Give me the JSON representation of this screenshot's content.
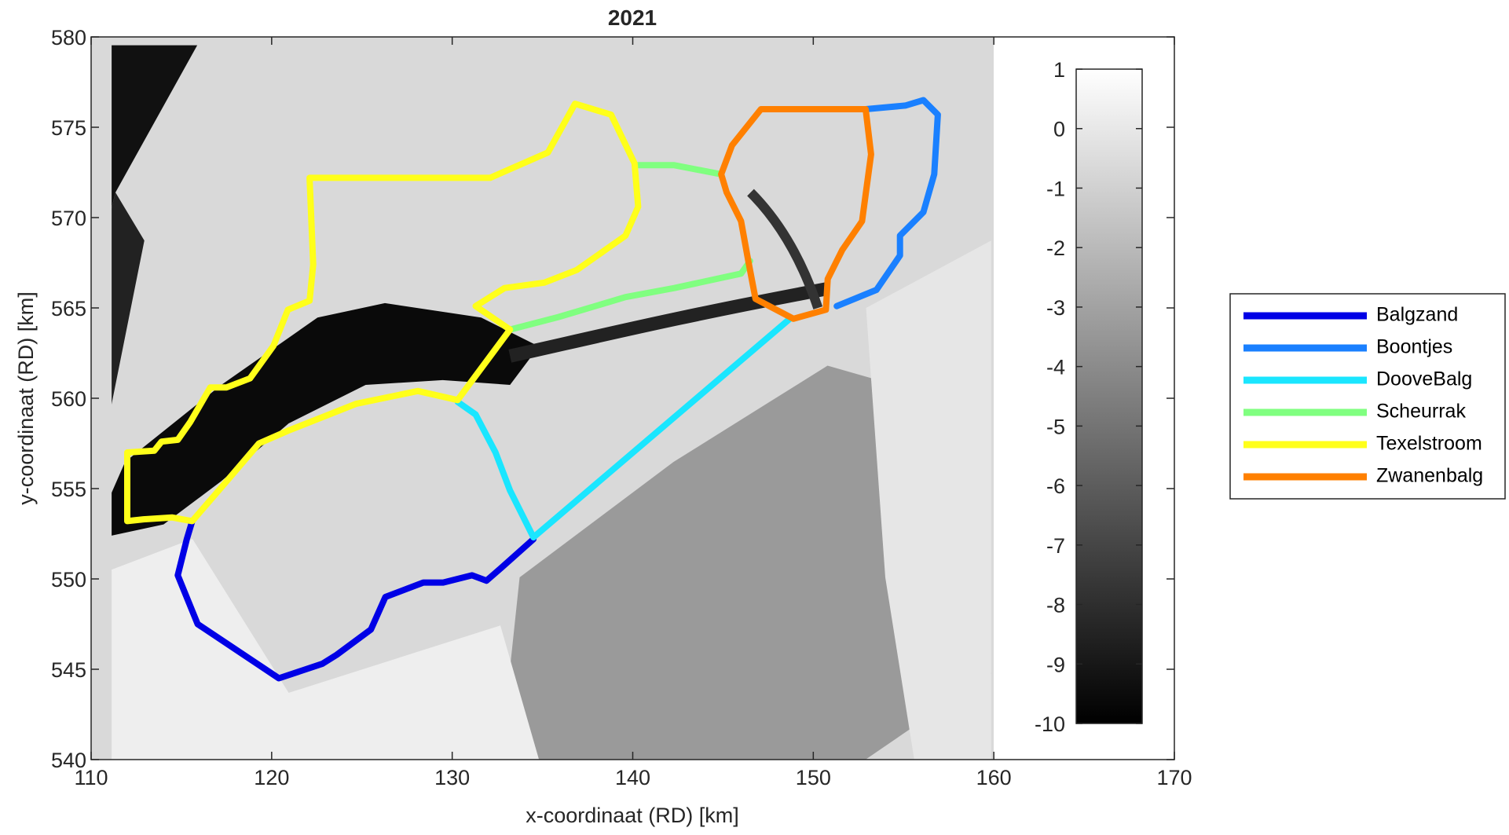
{
  "chart_data": {
    "type": "line",
    "title": "2021",
    "x_label": "x-coordinaat (RD) [km]",
    "y_label": "y-coordinaat (RD) [km]",
    "xlim": [
      110,
      170
    ],
    "xticks": [
      110,
      120,
      130,
      140,
      150,
      160,
      170
    ],
    "ylim": [
      540,
      580
    ],
    "yticks": [
      540,
      545,
      550,
      555,
      560,
      565,
      570,
      575,
      580
    ],
    "colorbar": {
      "lim": [
        -10,
        1
      ],
      "ticks": [
        1,
        0,
        -1,
        -2,
        -3,
        -4,
        -5,
        -6,
        -7,
        -8,
        -9,
        -10
      ]
    },
    "series": [
      {
        "name": "Balgzand",
        "color": "#0000e6",
        "x": [
          115.6,
          115.3,
          114.8,
          115.9,
          120.4,
          122.8,
          123.6,
          125.5,
          126.3,
          128.4,
          129.5,
          131.1,
          131.9,
          132.7,
          134.5
        ],
        "y": [
          553.2,
          552.2,
          550.2,
          547.5,
          544.5,
          545.3,
          545.8,
          547.2,
          549.0,
          549.8,
          549.8,
          550.2,
          549.9,
          550.6,
          552.2
        ]
      },
      {
        "name": "Boontjes",
        "color": "#1a80ff",
        "x": [
          152.9,
          155.1,
          156.1,
          156.9,
          156.7,
          156.1,
          154.8,
          154.8,
          153.5,
          151.3
        ],
        "y": [
          576.0,
          576.2,
          576.5,
          575.7,
          572.4,
          570.3,
          569.0,
          567.9,
          566.0,
          565.1
        ]
      },
      {
        "name": "DooveBalg",
        "color": "#1ae6ff",
        "x": [
          130.3,
          131.3,
          132.4,
          133.2,
          134.5,
          148.7
        ],
        "y": [
          559.8,
          559.1,
          557.0,
          554.9,
          552.3,
          564.4
        ]
      },
      {
        "name": "Scheurrak",
        "color": "#80ff80",
        "x": [
          140.3,
          142.3,
          144.9,
          null,
          133.2,
          135.9,
          139.6,
          142.3,
          146.0,
          146.5
        ],
        "y": [
          572.9,
          572.9,
          572.4,
          null,
          563.8,
          564.5,
          565.6,
          566.1,
          566.9,
          567.6
        ]
      },
      {
        "name": "Texelstroom",
        "color": "#ffff1a",
        "x": [
          112.0,
          112.0,
          113.5,
          113.9,
          114.8,
          115.5,
          116.6,
          117.5,
          118.8,
          120.1,
          120.9,
          122.1,
          122.3,
          122.1,
          132.1,
          135.3,
          136.8,
          138.8,
          140.1,
          140.3,
          139.6,
          136.9,
          135.1,
          132.9,
          131.3,
          133.2,
          130.3,
          128.1,
          124.7,
          120.9,
          119.3,
          117.5,
          115.6,
          114.5,
          112.9,
          112.0
        ],
        "y": [
          553.2,
          557.0,
          557.1,
          557.6,
          557.7,
          558.7,
          560.6,
          560.6,
          561.1,
          562.9,
          564.9,
          565.4,
          567.4,
          572.2,
          572.2,
          573.6,
          576.3,
          575.7,
          573.0,
          570.6,
          569.0,
          567.1,
          566.4,
          566.1,
          565.1,
          563.8,
          559.9,
          560.4,
          559.7,
          558.2,
          557.5,
          555.4,
          553.2,
          553.4,
          553.3,
          553.2
        ]
      },
      {
        "name": "Zwanenbalg",
        "color": "#ff8000",
        "x": [
          144.9,
          145.5,
          147.1,
          152.9,
          153.2,
          152.7,
          151.6,
          150.8,
          150.7,
          148.9,
          146.8,
          146.4,
          146.0,
          145.2,
          144.9
        ],
        "y": [
          572.4,
          574.0,
          576.0,
          576.0,
          573.5,
          569.8,
          568.2,
          566.6,
          564.9,
          564.4,
          565.5,
          567.6,
          569.8,
          571.4,
          572.4
        ]
      }
    ]
  }
}
